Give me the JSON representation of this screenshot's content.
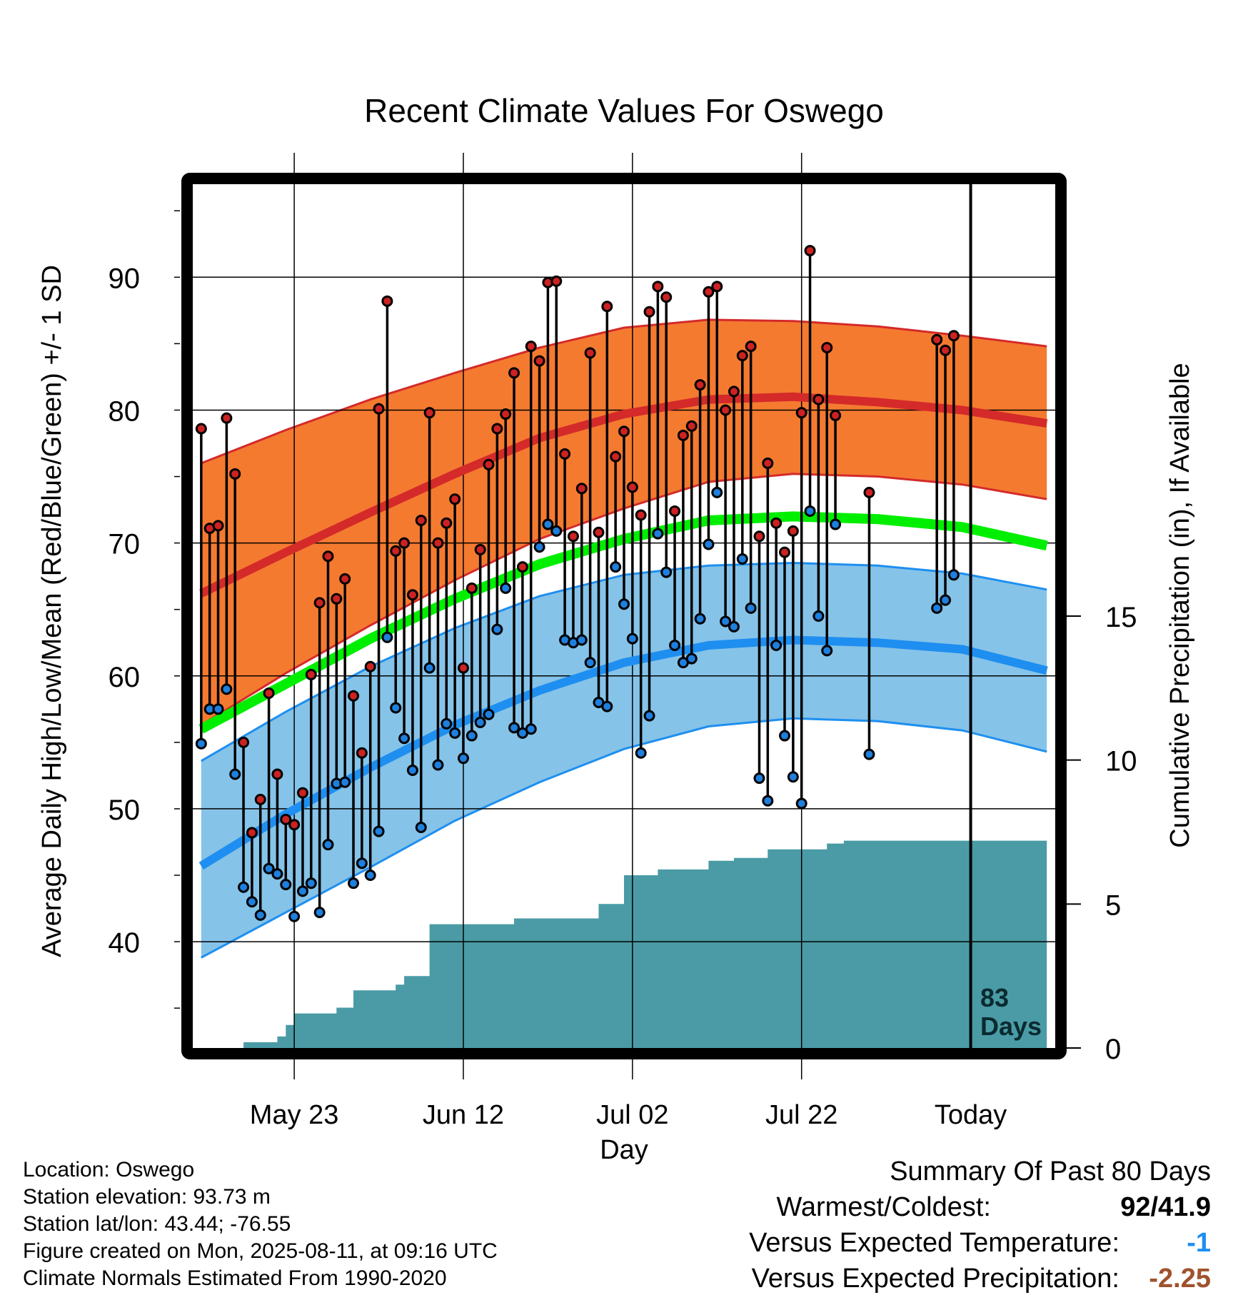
{
  "chart_data": {
    "type": "line",
    "title": "Recent Climate Values For Oswego",
    "xlabel": "Day",
    "ylabel": "Average Daily High/Low/Mean (Red/Blue/Green) +/- 1 SD",
    "y2label": "Cumulative Precipitation (in), If Available",
    "x_ticks": [
      "May 23",
      "Jun 12",
      "Jul 02",
      "Jul 22",
      "Today"
    ],
    "y_ticks": [
      40,
      50,
      60,
      70,
      80,
      90
    ],
    "y2_ticks": [
      0,
      5,
      10,
      15
    ],
    "ylim": [
      32,
      97
    ],
    "y2lim": [
      0,
      30
    ],
    "grid": true,
    "today_marker": {
      "label_line1": "83",
      "label_line2": "Days"
    },
    "normals": {
      "x": [
        "2025-05-12",
        "2025-05-22",
        "2025-06-01",
        "2025-06-11",
        "2025-06-21",
        "2025-07-01",
        "2025-07-11",
        "2025-07-21",
        "2025-07-31",
        "2025-08-10",
        "2025-08-20"
      ],
      "high_mean": [
        66.2,
        69.3,
        72.3,
        75.2,
        77.9,
        79.7,
        80.8,
        81.0,
        80.6,
        80.0,
        79.0
      ],
      "high_upper": [
        76.0,
        78.5,
        80.8,
        82.8,
        84.7,
        86.2,
        86.8,
        86.7,
        86.3,
        85.6,
        84.8
      ],
      "high_lower": [
        56.3,
        60.2,
        63.8,
        67.2,
        70.3,
        72.6,
        74.6,
        75.2,
        75.0,
        74.4,
        73.3
      ],
      "mean": [
        56.0,
        59.4,
        62.8,
        65.8,
        68.4,
        70.3,
        71.7,
        72.0,
        71.8,
        71.2,
        69.8
      ],
      "low_mean": [
        45.7,
        49.6,
        53.1,
        56.3,
        58.9,
        61.0,
        62.3,
        62.7,
        62.5,
        62.0,
        60.4
      ],
      "low_upper": [
        53.6,
        57.3,
        60.7,
        63.6,
        66.0,
        67.6,
        68.3,
        68.5,
        68.3,
        67.7,
        66.5
      ],
      "low_lower": [
        38.8,
        42.2,
        45.6,
        49.1,
        52.0,
        54.5,
        56.2,
        56.8,
        56.6,
        55.9,
        54.3
      ]
    },
    "daily": {
      "x": [
        "2025-05-12",
        "2025-05-13",
        "2025-05-14",
        "2025-05-15",
        "2025-05-16",
        "2025-05-17",
        "2025-05-18",
        "2025-05-19",
        "2025-05-20",
        "2025-05-21",
        "2025-05-22",
        "2025-05-23",
        "2025-05-24",
        "2025-05-25",
        "2025-05-26",
        "2025-05-27",
        "2025-05-28",
        "2025-05-29",
        "2025-05-30",
        "2025-05-31",
        "2025-06-01",
        "2025-06-02",
        "2025-06-03",
        "2025-06-04",
        "2025-06-05",
        "2025-06-06",
        "2025-06-07",
        "2025-06-08",
        "2025-06-09",
        "2025-06-10",
        "2025-06-11",
        "2025-06-12",
        "2025-06-13",
        "2025-06-14",
        "2025-06-15",
        "2025-06-16",
        "2025-06-17",
        "2025-06-18",
        "2025-06-19",
        "2025-06-20",
        "2025-06-21",
        "2025-06-22",
        "2025-06-23",
        "2025-06-24",
        "2025-06-25",
        "2025-06-26",
        "2025-06-27",
        "2025-06-28",
        "2025-06-29",
        "2025-06-30",
        "2025-07-01",
        "2025-07-02",
        "2025-07-03",
        "2025-07-04",
        "2025-07-05",
        "2025-07-06",
        "2025-07-07",
        "2025-07-08",
        "2025-07-09",
        "2025-07-10",
        "2025-07-11",
        "2025-07-12",
        "2025-07-13",
        "2025-07-14",
        "2025-07-15",
        "2025-07-16",
        "2025-07-17",
        "2025-07-18",
        "2025-07-19",
        "2025-07-20",
        "2025-07-21",
        "2025-07-22",
        "2025-07-23",
        "2025-07-24",
        "2025-07-25",
        "2025-07-26",
        "2025-07-30",
        "2025-08-07",
        "2025-08-08",
        "2025-08-09"
      ],
      "high": [
        78.6,
        71.1,
        71.3,
        79.4,
        75.2,
        55.0,
        48.2,
        50.7,
        58.7,
        52.6,
        49.2,
        48.8,
        51.2,
        60.1,
        65.5,
        69.0,
        65.8,
        67.3,
        58.5,
        54.2,
        60.7,
        80.1,
        88.2,
        69.4,
        70.0,
        66.1,
        71.7,
        79.8,
        70.0,
        71.5,
        73.3,
        60.6,
        66.6,
        69.5,
        75.9,
        78.6,
        79.7,
        82.8,
        68.2,
        84.8,
        83.7,
        89.6,
        89.7,
        76.7,
        70.5,
        74.1,
        84.3,
        70.8,
        87.8,
        76.5,
        78.4,
        74.2,
        72.1,
        87.4,
        89.3,
        88.5,
        72.4,
        78.1,
        78.8,
        81.9,
        88.9,
        89.3,
        80.0,
        81.4,
        84.1,
        84.8,
        70.5,
        76.0,
        71.5,
        69.3,
        70.9,
        79.8,
        92.0,
        80.8,
        84.7,
        79.6,
        73.8,
        85.3,
        84.5,
        85.6
      ],
      "low": [
        54.9,
        57.5,
        57.5,
        59.0,
        52.6,
        44.1,
        43.0,
        42.0,
        45.5,
        45.1,
        44.3,
        41.9,
        43.8,
        44.4,
        42.2,
        47.3,
        51.9,
        52.0,
        44.4,
        45.9,
        45.0,
        48.3,
        62.9,
        57.6,
        55.3,
        52.9,
        48.6,
        60.6,
        53.3,
        56.4,
        55.7,
        53.8,
        55.5,
        56.5,
        57.1,
        63.5,
        66.6,
        56.1,
        55.7,
        56.0,
        69.7,
        71.4,
        70.9,
        62.7,
        62.5,
        62.7,
        61.0,
        58.0,
        57.7,
        68.2,
        65.4,
        62.8,
        54.2,
        57.0,
        70.7,
        67.8,
        62.3,
        61.0,
        61.3,
        64.3,
        69.9,
        73.8,
        64.1,
        63.7,
        68.8,
        65.1,
        52.3,
        50.6,
        62.3,
        55.5,
        52.4,
        50.4,
        72.4,
        64.5,
        61.9,
        71.4,
        54.1,
        65.1,
        65.7,
        67.6
      ]
    },
    "precip": {
      "x": [
        "2025-05-12",
        "2025-05-16",
        "2025-05-17",
        "2025-05-20",
        "2025-05-21",
        "2025-05-22",
        "2025-05-23",
        "2025-05-24",
        "2025-05-26",
        "2025-05-28",
        "2025-05-29",
        "2025-05-30",
        "2025-06-02",
        "2025-06-04",
        "2025-06-05",
        "2025-06-06",
        "2025-06-07",
        "2025-06-08",
        "2025-06-16",
        "2025-06-18",
        "2025-06-26",
        "2025-06-28",
        "2025-06-29",
        "2025-07-01",
        "2025-07-05",
        "2025-07-10",
        "2025-07-11",
        "2025-07-14",
        "2025-07-18",
        "2025-07-20",
        "2025-07-25",
        "2025-07-27",
        "2025-08-10",
        "2025-08-20"
      ],
      "y": [
        0,
        0,
        0.2,
        0.2,
        0.4,
        0.8,
        1.2,
        1.2,
        1.2,
        1.4,
        1.4,
        2.0,
        2.0,
        2.2,
        2.5,
        2.5,
        2.5,
        4.3,
        4.3,
        4.5,
        4.5,
        5.0,
        5.0,
        6.0,
        6.2,
        6.2,
        6.5,
        6.6,
        6.9,
        6.9,
        7.1,
        7.2,
        7.2,
        7.2
      ]
    }
  },
  "footer_left": {
    "location": "Location: Oswego",
    "elevation": "Station elevation: 93.73 m",
    "latlon": "Station lat/lon: 43.44; -76.55",
    "created": "Figure created on Mon, 2025-08-11, at 09:16 UTC",
    "normals": "Climate Normals Estimated From 1990-2020"
  },
  "summary": {
    "heading": "Summary Of Past 80 Days",
    "warmest_label": "Warmest/Coldest:",
    "warmest_value": "92/41.9",
    "temp_label": "Versus Expected Temperature:",
    "temp_value": "-1",
    "precip_label": "Versus Expected Precipitation:",
    "precip_value": "-2.25",
    "temp_color": "#1e8ff0",
    "precip_color": "#a0522d"
  },
  "colors": {
    "high_band": "#f47a30",
    "high_line": "#d42a2a",
    "low_band": "#86c3e8",
    "low_line": "#1e8ff0",
    "mean_line": "#00ee00",
    "precip_fill": "#4a9ba5",
    "high_dot": "#cc2222",
    "low_dot": "#1e7fdd"
  }
}
